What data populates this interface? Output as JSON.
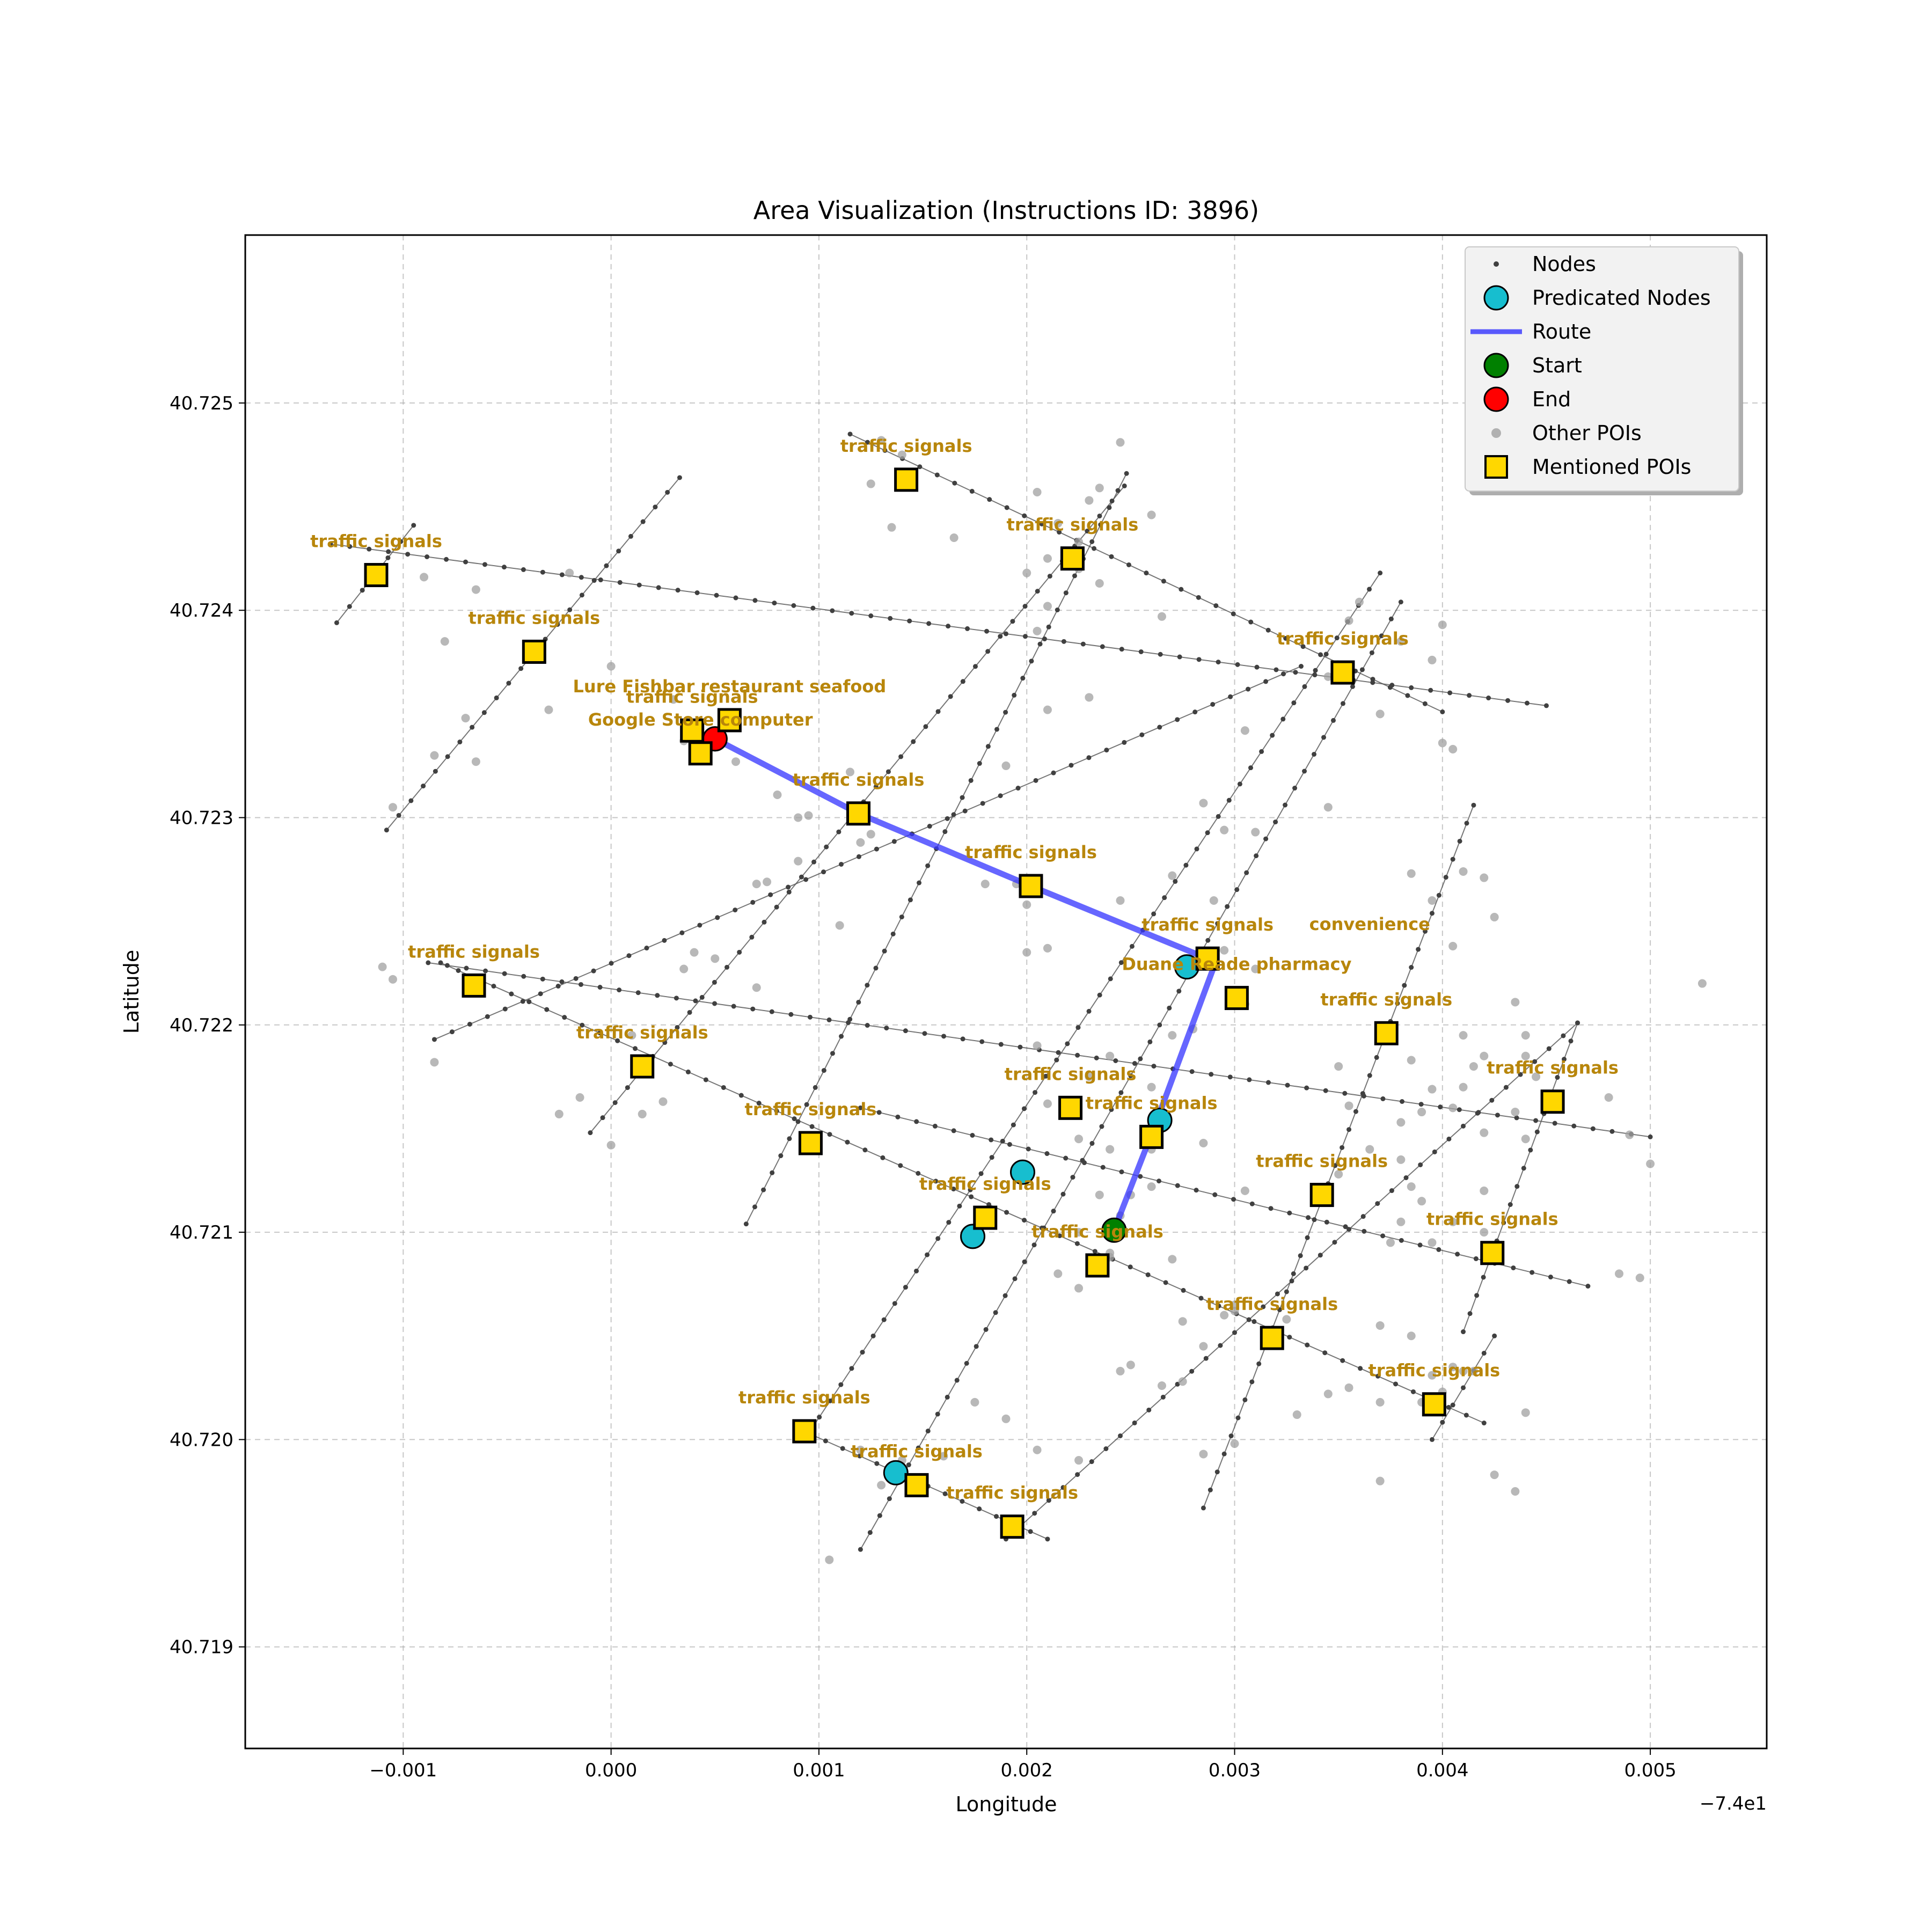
{
  "chart_data": {
    "type": "scatter",
    "title": "Area Visualization (Instructions ID: 3896)",
    "xlabel": "Longitude",
    "ylabel": "Latitude",
    "x_offset_label": "−7.4e1",
    "xlim": [
      -0.00176,
      0.00556
    ],
    "ylim": [
      40.71851,
      40.72581
    ],
    "x_ticks": [
      -0.001,
      0.0,
      0.001,
      0.002,
      0.003,
      0.004,
      0.005
    ],
    "x_tick_labels": [
      "−0.001",
      "0.000",
      "0.001",
      "0.002",
      "0.003",
      "0.004",
      "0.005"
    ],
    "y_ticks": [
      40.719,
      40.72,
      40.721,
      40.722,
      40.723,
      40.724,
      40.725
    ],
    "y_tick_labels": [
      "40.719",
      "40.720",
      "40.721",
      "40.722",
      "40.723",
      "40.724",
      "40.725"
    ],
    "grid": true,
    "legend": {
      "position": "top-right",
      "entries": [
        "Nodes",
        "Predicated Nodes",
        "Route",
        "Start",
        "End",
        "Other POIs",
        "Mentioned POIs"
      ]
    },
    "colors": {
      "node": "#404040",
      "street": "#555555",
      "predicated": "#17becf",
      "route": "#3333ff",
      "start": "#008000",
      "end": "#ff0000",
      "other_poi": "#a0a0a0",
      "mentioned_poi": "#ffd700",
      "poi_label": "#b8860b"
    },
    "streets": [
      [
        [
          -0.00135,
          40.72432
        ],
        [
          0.0045,
          40.72354
        ]
      ],
      [
        [
          0.00115,
          40.72485
        ],
        [
          0.004,
          40.72351
        ]
      ],
      [
        [
          -0.00082,
          40.7223
        ],
        [
          0.0042,
          40.72008
        ]
      ],
      [
        [
          -0.00088,
          40.7223
        ],
        [
          0.005,
          40.72146
        ]
      ],
      [
        [
          0.0012,
          40.7216
        ],
        [
          0.0047,
          40.72074
        ]
      ],
      [
        [
          0.00095,
          40.72003
        ],
        [
          0.0021,
          40.71952
        ]
      ],
      [
        [
          -0.00132,
          40.72394
        ],
        [
          -0.00095,
          40.72441
        ]
      ],
      [
        [
          -0.00108,
          40.72294
        ],
        [
          0.00033,
          40.72464
        ]
      ],
      [
        [
          -0.00085,
          40.72193
        ],
        [
          0.00332,
          40.72373
        ]
      ],
      [
        [
          -0.0001,
          40.72148
        ],
        [
          0.00247,
          40.7246
        ]
      ],
      [
        [
          0.00065,
          40.72104
        ],
        [
          0.00248,
          40.72466
        ]
      ],
      [
        [
          0.00095,
          40.72003
        ],
        [
          0.0037,
          40.72418
        ]
      ],
      [
        [
          0.0012,
          40.71947
        ],
        [
          0.0038,
          40.72404
        ]
      ],
      [
        [
          0.0019,
          40.71952
        ],
        [
          0.00465,
          40.72201
        ]
      ],
      [
        [
          0.00285,
          40.71967
        ],
        [
          0.00415,
          40.72306
        ]
      ],
      [
        [
          0.0041,
          40.72052
        ],
        [
          0.00465,
          40.72201
        ]
      ],
      [
        [
          0.00395,
          40.72
        ],
        [
          0.00425,
          40.7205
        ]
      ]
    ],
    "other_pois": [
      [
        -0.00105,
        40.72305
      ],
      [
        -0.0011,
        40.72228
      ],
      [
        -0.00105,
        40.72222
      ],
      [
        -0.0009,
        40.72416
      ],
      [
        -0.0008,
        40.72385
      ],
      [
        -0.00065,
        40.7241
      ],
      [
        -0.0007,
        40.72348
      ],
      [
        -0.00085,
        40.7233
      ],
      [
        -0.00065,
        40.72327
      ],
      [
        -0.0003,
        40.72352
      ],
      [
        -0.0002,
        40.72418
      ],
      [
        0.0,
        40.72373
      ],
      [
        0.0003,
        40.72357
      ],
      [
        0.00035,
        40.72337
      ],
      [
        0.0006,
        40.72327
      ],
      [
        -0.00085,
        40.72182
      ],
      [
        -0.00025,
        40.72157
      ],
      [
        -0.00015,
        40.72165
      ],
      [
        0.0,
        40.72142
      ],
      [
        0.0001,
        40.72195
      ],
      [
        0.00015,
        40.72157
      ],
      [
        0.00025,
        40.72163
      ],
      [
        0.00035,
        40.72227
      ],
      [
        0.0004,
        40.72235
      ],
      [
        0.0005,
        40.72232
      ],
      [
        0.0007,
        40.72218
      ],
      [
        0.0008,
        40.72311
      ],
      [
        0.0009,
        40.723
      ],
      [
        0.0007,
        40.72268
      ],
      [
        0.00075,
        40.72269
      ],
      [
        0.0009,
        40.72279
      ],
      [
        0.00095,
        40.72301
      ],
      [
        0.0011,
        40.72248
      ],
      [
        0.0012,
        40.72288
      ],
      [
        0.00115,
        40.72322
      ],
      [
        0.0012,
        40.72305
      ],
      [
        0.00125,
        40.72292
      ],
      [
        0.0013,
        40.72482
      ],
      [
        0.00125,
        40.72461
      ],
      [
        0.00135,
        40.7244
      ],
      [
        0.0014,
        40.72475
      ],
      [
        0.00165,
        40.72435
      ],
      [
        0.0018,
        40.72268
      ],
      [
        0.0019,
        40.72325
      ],
      [
        0.002,
        40.72235
      ],
      [
        0.00215,
        40.72442
      ],
      [
        0.00205,
        40.72457
      ],
      [
        0.0021,
        40.72425
      ],
      [
        0.00225,
        40.72433
      ],
      [
        0.00225,
        40.7242
      ],
      [
        0.0023,
        40.72453
      ],
      [
        0.00235,
        40.72459
      ],
      [
        0.00235,
        40.72413
      ],
      [
        0.00245,
        40.72481
      ],
      [
        0.0026,
        40.72446
      ],
      [
        0.00265,
        40.72397
      ],
      [
        0.002,
        40.72418
      ],
      [
        0.0021,
        40.72402
      ],
      [
        0.00205,
        40.7239
      ],
      [
        0.0021,
        40.72352
      ],
      [
        0.0023,
        40.72358
      ],
      [
        0.00195,
        40.72268
      ],
      [
        0.002,
        40.72258
      ],
      [
        0.0021,
        40.72237
      ],
      [
        0.00245,
        40.7226
      ],
      [
        0.0027,
        40.72272
      ],
      [
        0.00285,
        40.72307
      ],
      [
        0.00295,
        40.72294
      ],
      [
        0.0029,
        40.7226
      ],
      [
        0.00305,
        40.72342
      ],
      [
        0.0031,
        40.72293
      ],
      [
        0.00345,
        40.72368
      ],
      [
        0.00355,
        40.72395
      ],
      [
        0.0036,
        40.72404
      ],
      [
        0.0037,
        40.7235
      ],
      [
        0.0038,
        40.72385
      ],
      [
        0.00395,
        40.72376
      ],
      [
        0.004,
        40.72393
      ],
      [
        0.004,
        40.72336
      ],
      [
        0.00405,
        40.72333
      ],
      [
        0.00345,
        40.72305
      ],
      [
        0.00385,
        40.72273
      ],
      [
        0.00395,
        40.7226
      ],
      [
        0.0041,
        40.72274
      ],
      [
        0.0042,
        40.72271
      ],
      [
        0.00425,
        40.72252
      ],
      [
        0.00405,
        40.72238
      ],
      [
        0.0041,
        40.72195
      ],
      [
        0.0042,
        40.72185
      ],
      [
        0.00395,
        40.72169
      ],
      [
        0.00385,
        40.72183
      ],
      [
        0.0035,
        40.7218
      ],
      [
        0.00355,
        40.72161
      ],
      [
        0.00365,
        40.7214
      ],
      [
        0.0038,
        40.72153
      ],
      [
        0.0039,
        40.72158
      ],
      [
        0.0041,
        40.7217
      ],
      [
        0.0042,
        40.72148
      ],
      [
        0.00405,
        40.7216
      ],
      [
        0.0044,
        40.72185
      ],
      [
        0.00445,
        40.72175
      ],
      [
        0.0044,
        40.72145
      ],
      [
        0.00435,
        40.72158
      ],
      [
        0.0045,
        40.7216
      ],
      [
        0.0048,
        40.72165
      ],
      [
        0.0049,
        40.72147
      ],
      [
        0.005,
        40.72133
      ],
      [
        0.00485,
        40.7208
      ],
      [
        0.00495,
        40.72078
      ],
      [
        0.00525,
        40.7222
      ],
      [
        0.0042,
        40.7212
      ],
      [
        0.00405,
        40.72105
      ],
      [
        0.0042,
        40.721
      ],
      [
        0.0039,
        40.72115
      ],
      [
        0.00385,
        40.72122
      ],
      [
        0.0038,
        40.72135
      ],
      [
        0.0034,
        40.7212
      ],
      [
        0.0035,
        40.72128
      ],
      [
        0.00375,
        40.72095
      ],
      [
        0.0037,
        40.72055
      ],
      [
        0.00385,
        40.7205
      ],
      [
        0.00405,
        40.72035
      ],
      [
        0.00415,
        40.72033
      ],
      [
        0.004,
        40.72023
      ],
      [
        0.0039,
        40.72018
      ],
      [
        0.0037,
        40.72018
      ],
      [
        0.00355,
        40.72025
      ],
      [
        0.00345,
        40.72022
      ],
      [
        0.00325,
        40.72058
      ],
      [
        0.003,
        40.72065
      ],
      [
        0.003,
        40.72062
      ],
      [
        0.003,
        40.71998
      ],
      [
        0.00285,
        40.71993
      ],
      [
        0.0027,
        40.72087
      ],
      [
        0.0026,
        40.72122
      ],
      [
        0.00285,
        40.72143
      ],
      [
        0.00305,
        40.7212
      ],
      [
        0.00285,
        40.72045
      ],
      [
        0.00275,
        40.72028
      ],
      [
        0.0025,
        40.72036
      ],
      [
        0.00245,
        40.72108
      ],
      [
        0.00235,
        40.72118
      ],
      [
        0.0024,
        40.7209
      ],
      [
        0.0025,
        40.72118
      ],
      [
        0.0026,
        40.7214
      ],
      [
        0.0024,
        40.7214
      ],
      [
        0.00225,
        40.72145
      ],
      [
        0.0021,
        40.72162
      ],
      [
        0.00205,
        40.7219
      ],
      [
        0.0023,
        40.72175
      ],
      [
        0.0024,
        40.72185
      ],
      [
        0.0026,
        40.7217
      ],
      [
        0.00265,
        40.72152
      ],
      [
        0.0027,
        40.72195
      ],
      [
        0.0028,
        40.72198
      ],
      [
        0.00305,
        40.7221
      ],
      [
        0.0031,
        40.72227
      ],
      [
        0.00295,
        40.72236
      ],
      [
        0.00225,
        40.721
      ],
      [
        0.00215,
        40.7208
      ],
      [
        0.00225,
        40.72073
      ],
      [
        0.0024,
        40.72088
      ],
      [
        0.00175,
        40.72018
      ],
      [
        0.0016,
        40.71992
      ],
      [
        0.0013,
        40.71978
      ],
      [
        0.0014,
        40.7199
      ],
      [
        0.00105,
        40.71942
      ],
      [
        0.0012,
        40.71995
      ],
      [
        0.0019,
        40.7201
      ],
      [
        0.00205,
        40.71995
      ],
      [
        0.00225,
        40.7199
      ],
      [
        0.00245,
        40.72033
      ],
      [
        0.00265,
        40.72026
      ],
      [
        0.00275,
        40.72057
      ],
      [
        0.00295,
        40.7206
      ],
      [
        0.0033,
        40.72012
      ],
      [
        0.0037,
        40.7198
      ],
      [
        0.00395,
        40.72031
      ],
      [
        0.0041,
        40.72033
      ],
      [
        0.00425,
        40.71983
      ],
      [
        0.00435,
        40.71975
      ],
      [
        0.0044,
        40.72013
      ],
      [
        0.0038,
        40.72105
      ],
      [
        0.00395,
        40.72095
      ],
      [
        0.00415,
        40.7218
      ],
      [
        0.00435,
        40.72211
      ],
      [
        0.0044,
        40.72195
      ]
    ],
    "predicated_nodes": [
      [
        0.00277,
        40.72228
      ],
      [
        0.00264,
        40.72154
      ],
      [
        0.00198,
        40.72129
      ],
      [
        0.00174,
        40.72098
      ],
      [
        0.00137,
        40.71984
      ],
      [
        0.0005,
        40.72338
      ]
    ],
    "route": [
      [
        0.00242,
        40.72101
      ],
      [
        0.00263,
        40.72155
      ],
      [
        0.0029,
        40.72228
      ],
      [
        0.00287,
        40.72232
      ],
      [
        0.00202,
        40.72267
      ],
      [
        0.00119,
        40.72302
      ],
      [
        0.0005,
        40.72338
      ]
    ],
    "start": [
      0.00242,
      40.72101
    ],
    "end": [
      0.0005,
      40.72338
    ],
    "mentioned_pois": [
      {
        "x": -0.00113,
        "y": 40.72417,
        "label": "traffic signals"
      },
      {
        "x": -0.00037,
        "y": 40.7238,
        "label": "traffic signals"
      },
      {
        "x": 0.00039,
        "y": 40.72342,
        "label": "traffic signals"
      },
      {
        "x": 0.00057,
        "y": 40.72347,
        "label": "Lure Fishbar restaurant seafood"
      },
      {
        "x": 0.00043,
        "y": 40.72331,
        "label": "Google Store computer"
      },
      {
        "x": 0.00142,
        "y": 40.72463,
        "label": "traffic signals"
      },
      {
        "x": 0.00222,
        "y": 40.72425,
        "label": "traffic signals"
      },
      {
        "x": 0.00352,
        "y": 40.7237,
        "label": "traffic signals"
      },
      {
        "x": 0.00119,
        "y": 40.72302,
        "label": "traffic signals"
      },
      {
        "x": 0.00202,
        "y": 40.72267,
        "label": "traffic signals"
      },
      {
        "x": 0.00287,
        "y": 40.72232,
        "label": "traffic signals"
      },
      {
        "x": 0.00301,
        "y": 40.72213,
        "label": "Duane Reade pharmacy"
      },
      {
        "x": 0.00373,
        "y": 40.72196,
        "label": "traffic signals"
      },
      {
        "x": 0.00453,
        "y": 40.72163,
        "label": "traffic signals"
      },
      {
        "x": -0.00066,
        "y": 40.72219,
        "label": "traffic signals"
      },
      {
        "x": 0.00015,
        "y": 40.7218,
        "label": "traffic signals"
      },
      {
        "x": 0.00096,
        "y": 40.72143,
        "label": "traffic signals"
      },
      {
        "x": 0.00221,
        "y": 40.7216,
        "label": "traffic signals"
      },
      {
        "x": 0.0026,
        "y": 40.72146,
        "label": "traffic signals"
      },
      {
        "x": 0.00342,
        "y": 40.72118,
        "label": "traffic signals"
      },
      {
        "x": 0.0018,
        "y": 40.72107,
        "label": "traffic signals"
      },
      {
        "x": 0.00234,
        "y": 40.72084,
        "label": "traffic signals"
      },
      {
        "x": 0.00424,
        "y": 40.7209,
        "label": "traffic signals"
      },
      {
        "x": 0.00318,
        "y": 40.72049,
        "label": "traffic signals"
      },
      {
        "x": 0.00396,
        "y": 40.72017,
        "label": "traffic signals"
      },
      {
        "x": 0.00093,
        "y": 40.72004,
        "label": "traffic signals"
      },
      {
        "x": 0.00147,
        "y": 40.71978,
        "label": "traffic signals"
      },
      {
        "x": 0.00193,
        "y": 40.71958,
        "label": "traffic signals"
      }
    ],
    "extra_labels": [
      {
        "x": 0.00365,
        "y": 40.72238,
        "label": "convenience"
      }
    ]
  }
}
